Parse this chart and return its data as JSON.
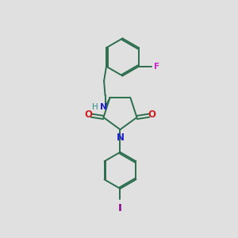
{
  "bg_color": "#e0e0e0",
  "bond_color": "#2d6e4e",
  "N_color": "#2222cc",
  "O_color": "#cc2222",
  "F_color": "#cc22cc",
  "I_color": "#880088",
  "H_color": "#2d8b8b",
  "line_width": 1.4,
  "figsize": [
    3.0,
    3.0
  ],
  "dpi": 100,
  "xlim": [
    0,
    10
  ],
  "ylim": [
    0,
    10
  ]
}
